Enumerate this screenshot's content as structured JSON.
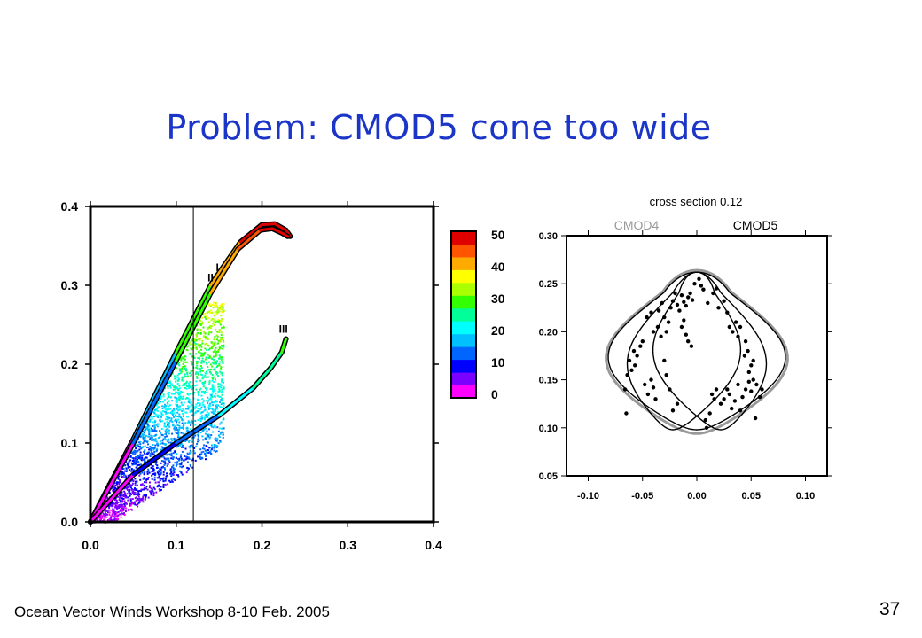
{
  "slide": {
    "title": "Problem: CMOD5 cone too wide",
    "footer": "Ocean Vector Winds Workshop 8-10 Feb. 2005",
    "page_number": "37"
  },
  "chart_data": [
    {
      "type": "scatter",
      "title": "",
      "xlabel": "",
      "ylabel": "",
      "xlim": [
        0.0,
        0.4
      ],
      "ylim": [
        0.0,
        0.4
      ],
      "x_ticks": [
        "0.0",
        "0.1",
        "0.2",
        "0.3",
        "0.4"
      ],
      "y_ticks": [
        "0.0",
        "0.1",
        "0.2",
        "0.3",
        "0.4"
      ],
      "vertical_line_x": 0.12,
      "colorbar": {
        "ticks": [
          "50",
          "40",
          "30",
          "20",
          "10",
          "0"
        ],
        "range": [
          0,
          50
        ],
        "colors": [
          "#ff00ff",
          "#7a00ff",
          "#0000ff",
          "#0066ff",
          "#00c0ff",
          "#00ffff",
          "#00ff99",
          "#33ff00",
          "#aaff00",
          "#ffff00",
          "#ffaa00",
          "#ff5500",
          "#e00000"
        ]
      },
      "branches": [
        {
          "label": "I",
          "x": [
            0.0,
            0.05,
            0.1,
            0.14,
            0.175,
            0.2,
            0.215,
            0.228,
            0.233
          ],
          "y": [
            0.0,
            0.105,
            0.215,
            0.3,
            0.355,
            0.377,
            0.378,
            0.37,
            0.362
          ]
        },
        {
          "label": "II",
          "x": [
            0.0,
            0.05,
            0.1,
            0.14,
            0.172,
            0.198,
            0.212,
            0.224,
            0.23
          ],
          "y": [
            0.0,
            0.1,
            0.205,
            0.29,
            0.346,
            0.37,
            0.372,
            0.366,
            0.362
          ]
        },
        {
          "label": "III",
          "x": [
            0.0,
            0.05,
            0.1,
            0.15,
            0.19,
            0.21,
            0.223,
            0.228
          ],
          "y": [
            0.0,
            0.06,
            0.1,
            0.135,
            0.17,
            0.195,
            0.215,
            0.232
          ]
        }
      ],
      "scatter_cloud": {
        "x_max": 0.155,
        "y_max": 0.28
      }
    },
    {
      "type": "scatter",
      "title": "cross section 0.12",
      "legend": [
        "CMOD4",
        "CMOD5"
      ],
      "legend_colors": [
        "#999999",
        "#000000"
      ],
      "xlim": [
        -0.12,
        0.12
      ],
      "ylim": [
        0.05,
        0.3
      ],
      "x_ticks": [
        "-0.10",
        "-0.05",
        "0.00",
        "0.05",
        "0.10"
      ],
      "y_ticks": [
        "0.30",
        "0.25",
        "0.20",
        "0.15",
        "0.10",
        "0.05"
      ],
      "curves": {
        "cmod5_outer": {
          "bottom_y": 0.098,
          "top_y": 0.262,
          "half_width": 0.082
        },
        "inner_lobes": {
          "bottom_y": 0.098,
          "top_y": 0.262,
          "half_width": 0.052,
          "center_offset": 0.022
        }
      },
      "points": [
        [
          -0.065,
          0.115
        ],
        [
          -0.062,
          0.17
        ],
        [
          -0.058,
          0.18
        ],
        [
          -0.06,
          0.16
        ],
        [
          -0.055,
          0.175
        ],
        [
          -0.052,
          0.185
        ],
        [
          -0.05,
          0.19
        ],
        [
          -0.057,
          0.165
        ],
        [
          -0.048,
          0.145
        ],
        [
          -0.045,
          0.135
        ],
        [
          -0.042,
          0.15
        ],
        [
          -0.04,
          0.142
        ],
        [
          -0.038,
          0.13
        ],
        [
          -0.04,
          0.2
        ],
        [
          -0.036,
          0.205
        ],
        [
          -0.033,
          0.195
        ],
        [
          -0.03,
          0.215
        ],
        [
          -0.028,
          0.2
        ],
        [
          -0.026,
          0.21
        ],
        [
          -0.024,
          0.225
        ],
        [
          -0.022,
          0.232
        ],
        [
          -0.02,
          0.24
        ],
        [
          -0.018,
          0.228
        ],
        [
          -0.016,
          0.222
        ],
        [
          -0.014,
          0.238
        ],
        [
          -0.012,
          0.231
        ],
        [
          -0.01,
          0.227
        ],
        [
          -0.008,
          0.236
        ],
        [
          -0.006,
          0.24
        ],
        [
          -0.004,
          0.233
        ],
        [
          -0.002,
          0.25
        ],
        [
          0.002,
          0.255
        ],
        [
          0.004,
          0.248
        ],
        [
          0.006,
          0.244
        ],
        [
          -0.03,
          0.17
        ],
        [
          -0.028,
          0.155
        ],
        [
          -0.025,
          0.14
        ],
        [
          -0.022,
          0.118
        ],
        [
          -0.018,
          0.125
        ],
        [
          -0.014,
          0.205
        ],
        [
          -0.012,
          0.212
        ],
        [
          -0.01,
          0.197
        ],
        [
          -0.008,
          0.19
        ],
        [
          -0.005,
          0.185
        ],
        [
          0.012,
          0.115
        ],
        [
          0.014,
          0.135
        ],
        [
          0.016,
          0.13
        ],
        [
          0.018,
          0.14
        ],
        [
          0.022,
          0.125
        ],
        [
          0.025,
          0.13
        ],
        [
          0.028,
          0.14
        ],
        [
          0.03,
          0.135
        ],
        [
          0.032,
          0.12
        ],
        [
          0.035,
          0.128
        ],
        [
          0.038,
          0.145
        ],
        [
          0.04,
          0.118
        ],
        [
          0.042,
          0.132
        ],
        [
          0.045,
          0.14
        ],
        [
          0.048,
          0.148
        ],
        [
          0.05,
          0.138
        ],
        [
          0.052,
          0.15
        ],
        [
          0.055,
          0.145
        ],
        [
          0.05,
          0.165
        ],
        [
          0.052,
          0.17
        ],
        [
          0.048,
          0.158
        ],
        [
          0.045,
          0.19
        ],
        [
          0.047,
          0.18
        ],
        [
          0.044,
          0.175
        ],
        [
          0.03,
          0.205
        ],
        [
          0.033,
          0.2
        ],
        [
          0.036,
          0.21
        ],
        [
          0.038,
          0.195
        ],
        [
          0.04,
          0.205
        ],
        [
          0.02,
          0.225
        ],
        [
          0.025,
          0.232
        ],
        [
          0.028,
          0.22
        ],
        [
          0.015,
          0.24
        ],
        [
          0.018,
          0.245
        ],
        [
          0.01,
          0.23
        ],
        [
          -0.042,
          0.22
        ],
        [
          -0.046,
          0.215
        ],
        [
          -0.035,
          0.222
        ],
        [
          -0.032,
          0.23
        ],
        [
          0.008,
          0.108
        ],
        [
          0.009,
          0.1
        ],
        [
          0.054,
          0.11
        ],
        [
          0.058,
          0.132
        ],
        [
          0.06,
          0.14
        ],
        [
          -0.064,
          0.155
        ],
        [
          -0.066,
          0.14
        ]
      ]
    }
  ]
}
